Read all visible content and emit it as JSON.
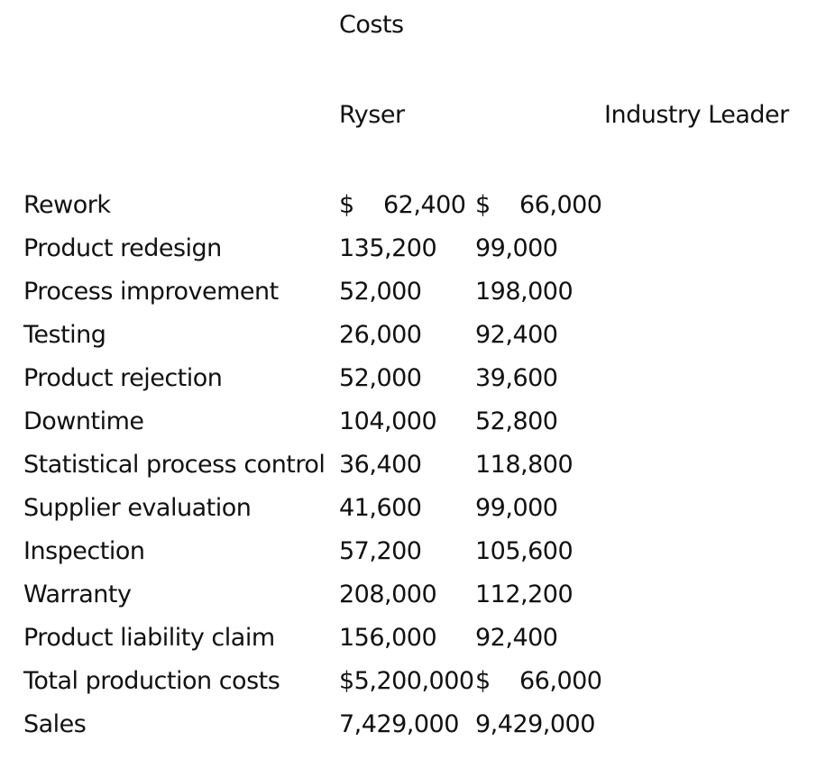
{
  "title": "Costs",
  "headers": {
    "ryser": "Ryser",
    "leader": "Industry Leader"
  },
  "rows": [
    {
      "label": "Rework",
      "ryser": "$    62,400",
      "leader": "$    66,000"
    },
    {
      "label": "Product redesign",
      "ryser": "135,200",
      "leader": "99,000"
    },
    {
      "label": "Process improvement",
      "ryser": "52,000",
      "leader": "198,000"
    },
    {
      "label": "Testing",
      "ryser": "26,000",
      "leader": "92,400"
    },
    {
      "label": "Product rejection",
      "ryser": "52,000",
      "leader": "39,600"
    },
    {
      "label": "Downtime",
      "ryser": "104,000",
      "leader": "52,800"
    },
    {
      "label": "Statistical process control",
      "ryser": "36,400",
      "leader": "118,800"
    },
    {
      "label": "Supplier evaluation",
      "ryser": "41,600",
      "leader": "99,000"
    },
    {
      "label": "Inspection",
      "ryser": "57,200",
      "leader": "105,600"
    },
    {
      "label": "Warranty",
      "ryser": "208,000",
      "leader": "112,200"
    },
    {
      "label": "Product liability claim",
      "ryser": "156,000",
      "leader": "92,400"
    },
    {
      "label": "Total production costs",
      "ryser": "$5,200,000",
      "leader": "$    66,000"
    },
    {
      "label": "Sales",
      "ryser": "7,429,000",
      "leader": "9,429,000"
    }
  ]
}
